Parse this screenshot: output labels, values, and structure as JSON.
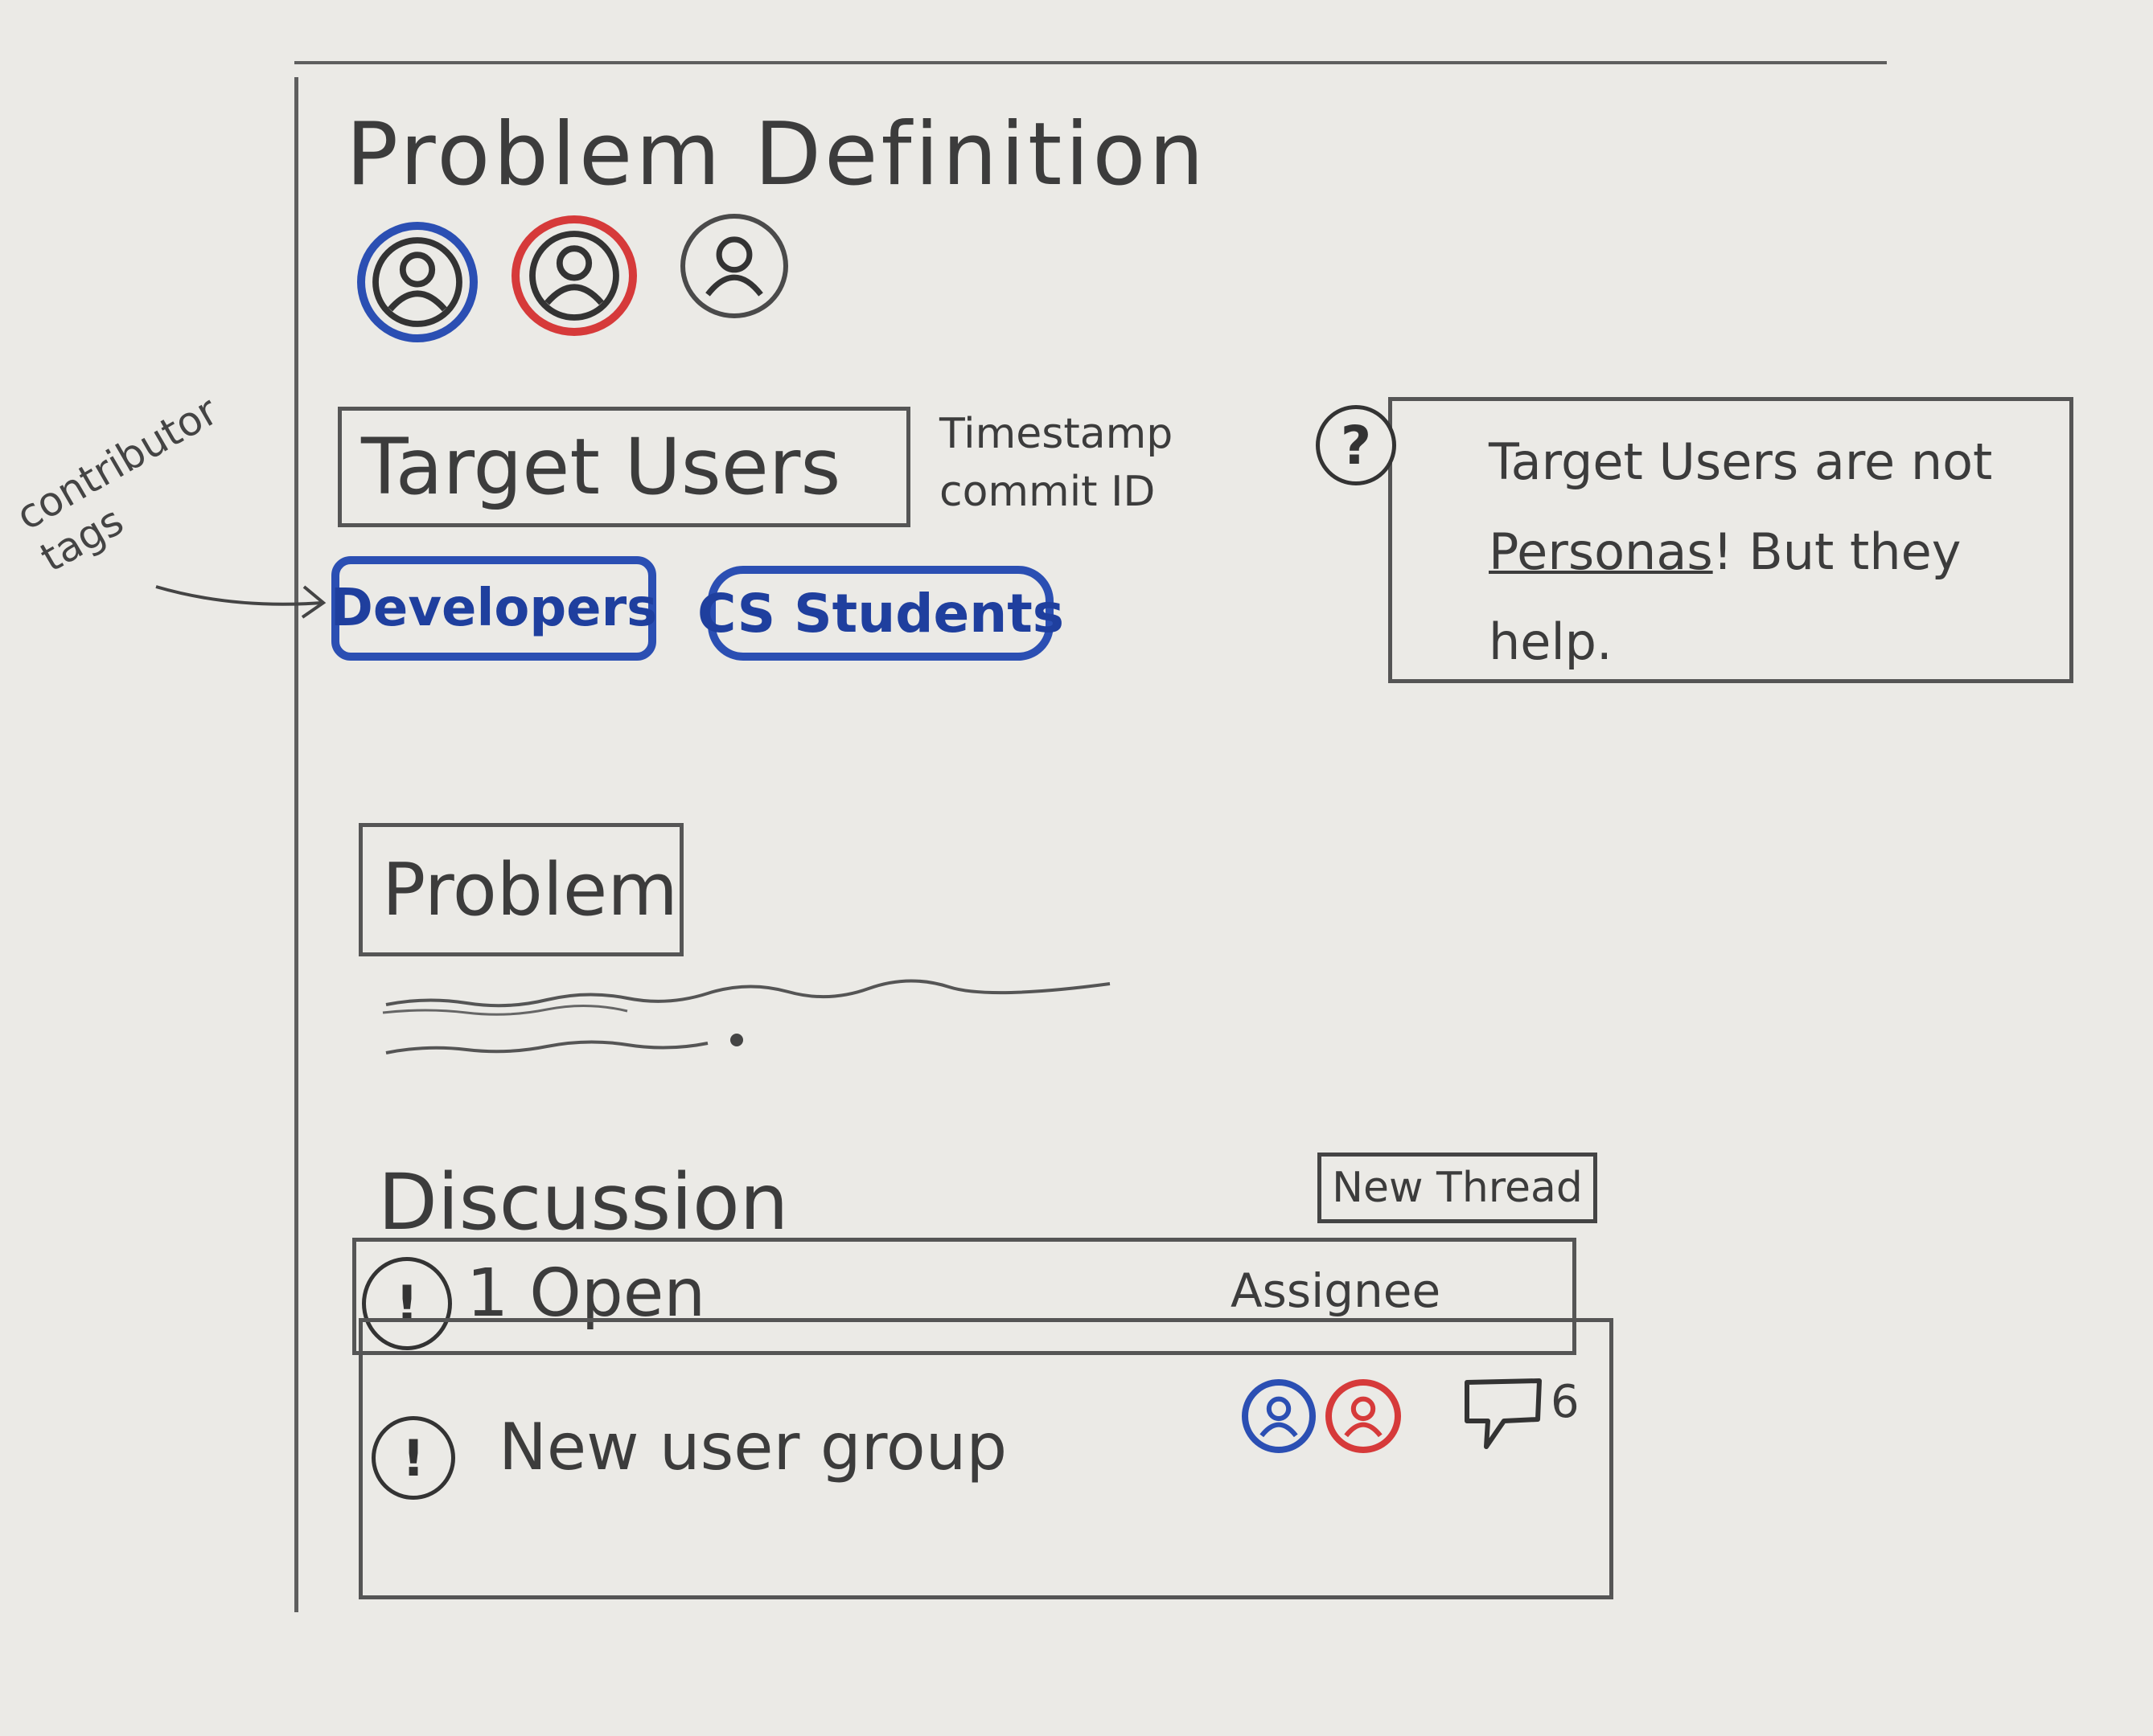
{
  "page": {
    "title": "Problem Definition",
    "contributors": [
      {
        "name": "contributor-avatar-blue",
        "color": "#2b4fb3"
      },
      {
        "name": "contributor-avatar-red",
        "color": "#d63a3a"
      },
      {
        "name": "contributor-avatar-gray",
        "color": "#4a4a4a"
      }
    ]
  },
  "target_users": {
    "label": "Target Users",
    "timestamp": "Timestamp",
    "commit_id": "commit ID",
    "tags": [
      "Developers",
      "CS Students"
    ],
    "annotation": "contributor tags"
  },
  "help": {
    "icon": "question-icon",
    "text_before": "Target Users are not ",
    "link": "Personas",
    "text_after": "! But they help."
  },
  "problem": {
    "label": "Problem"
  },
  "discussion": {
    "title": "Discussion",
    "new_thread_label": "New Thread",
    "open_count": "1 Open",
    "assignee_label": "Assignee",
    "threads": [
      {
        "title": "New user group",
        "comments": "6"
      }
    ],
    "assignee_colors": [
      "#2b4fb3",
      "#d63a3a"
    ]
  },
  "icons": {
    "alert": "!",
    "help": "?"
  }
}
